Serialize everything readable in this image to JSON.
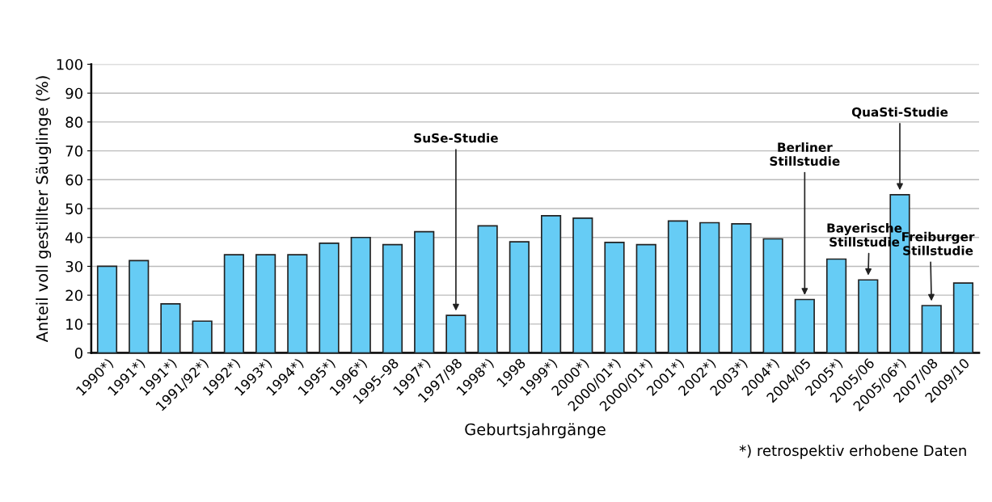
{
  "chart_data": {
    "type": "bar",
    "xlabel": "Geburtsjahrgänge",
    "ylabel": "Anteil voll gestillter Säuglinge (%)",
    "categories": [
      "1990*)",
      "1991*)",
      "1991*)",
      "1991/92*)",
      "1992*)",
      "1993*)",
      "1994*)",
      "1995*)",
      "1996*)",
      "1995–98",
      "1997*)",
      "1997/98",
      "1998*)",
      "1998",
      "1999*)",
      "2000*)",
      "2000/01*)",
      "2000/01*)",
      "2001*)",
      "2002*)",
      "2003*)",
      "2004*)",
      "2004/05",
      "2005*)",
      "2005/06",
      "2005/06*)",
      "2007/08",
      "2009/10"
    ],
    "values": [
      30,
      32,
      17,
      11,
      34,
      34,
      34,
      38,
      40,
      37.5,
      42,
      13,
      44,
      38.5,
      47.5,
      46.7,
      38.3,
      37.5,
      45.7,
      45.1,
      44.7,
      39.5,
      18.5,
      32.5,
      25.3,
      54.8,
      16.4,
      24.2
    ],
    "color": "#66ccf5",
    "ylim": [
      0,
      100
    ],
    "yticks": [
      0,
      10,
      20,
      30,
      40,
      50,
      60,
      70,
      80,
      90,
      100
    ],
    "grid": "y",
    "annotations": [
      {
        "text": "SuSe-Studie",
        "x": "1997/98",
        "y": 13
      },
      {
        "text": "Berliner\nStillstudie",
        "x": "2004/05",
        "y": 18.5
      },
      {
        "text": "Bayerische\nStillstudie",
        "x": "2005/06",
        "y": 25.3
      },
      {
        "text": "QuaSti-Studie",
        "x": "2005/06*)",
        "y": 54.8
      },
      {
        "text": "Freiburger\nStillstudie",
        "x": "2007/08",
        "y": 16.4
      },
      "*) retrospektiv erhobene Daten"
    ]
  }
}
